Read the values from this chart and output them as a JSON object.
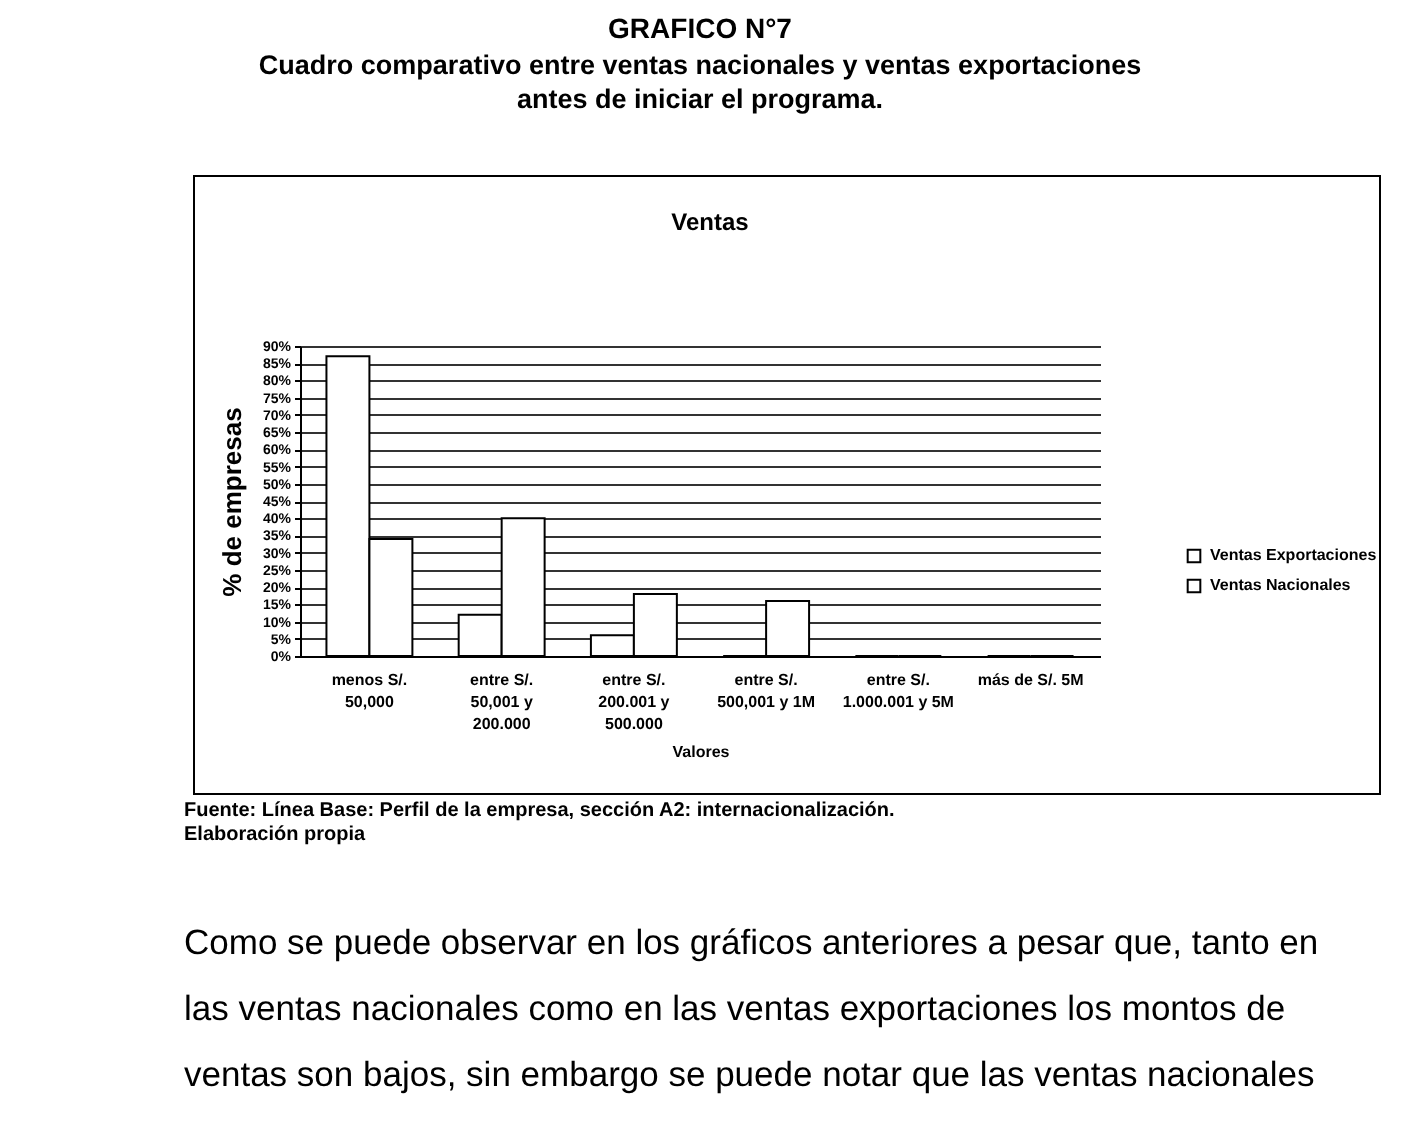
{
  "chart_data": {
    "type": "bar",
    "title": "Ventas",
    "xlabel": "Valores",
    "ylabel": "% de empresas",
    "categories": [
      "menos S/. 50,000",
      "entre S/. 50,001 y 200.000",
      "entre S/. 200.001 y 500.000",
      "entre S/. 500,001 y 1M",
      "entre S/. 1.000.001 y 5M",
      "más de S/. 5M"
    ],
    "series": [
      {
        "name": "Ventas Exportaciones",
        "color": "#ffffff",
        "values": [
          87,
          12,
          6,
          0,
          0,
          0
        ]
      },
      {
        "name": "Ventas Nacionales",
        "color": "#ffffff",
        "values": [
          34,
          40,
          18,
          16,
          0,
          0
        ]
      }
    ],
    "ylim": [
      0,
      90
    ],
    "yticks": [
      {
        "value": 0,
        "label": "0%"
      },
      {
        "value": 5,
        "label": "5%"
      },
      {
        "value": 10,
        "label": "10%"
      },
      {
        "value": 15,
        "label": "15%"
      },
      {
        "value": 20,
        "label": "20%"
      },
      {
        "value": 25,
        "label": "25%"
      },
      {
        "value": 30,
        "label": "30%"
      },
      {
        "value": 35,
        "label": "35%"
      },
      {
        "value": 40,
        "label": "40%"
      },
      {
        "value": 45,
        "label": "45%"
      },
      {
        "value": 50,
        "label": "50%"
      },
      {
        "value": 55,
        "label": "55%"
      },
      {
        "value": 60,
        "label": "60%"
      },
      {
        "value": 65,
        "label": "65%"
      },
      {
        "value": 70,
        "label": "70%"
      },
      {
        "value": 75,
        "label": "75%"
      },
      {
        "value": 80,
        "label": "80%"
      },
      {
        "value": 85,
        "label": "85%"
      },
      {
        "value": 90,
        "label": "90%"
      }
    ],
    "grid": "y",
    "legend": "right",
    "annotations": [
      "GRAFICO N°7",
      "Cuadro comparativo entre ventas nacionales y ventas exportaciones antes de iniciar el programa.",
      "Fuente: Línea Base: Perfil de la empresa, sección A2: internacionalización.",
      "Elaboración propia",
      "Como se puede observar en los gráficos anteriores a pesar que, tanto en las ventas nacionales como en las ventas exportaciones los montos de ventas son bajos, sin embargo se puede notar que las ventas nacionales"
    ]
  }
}
